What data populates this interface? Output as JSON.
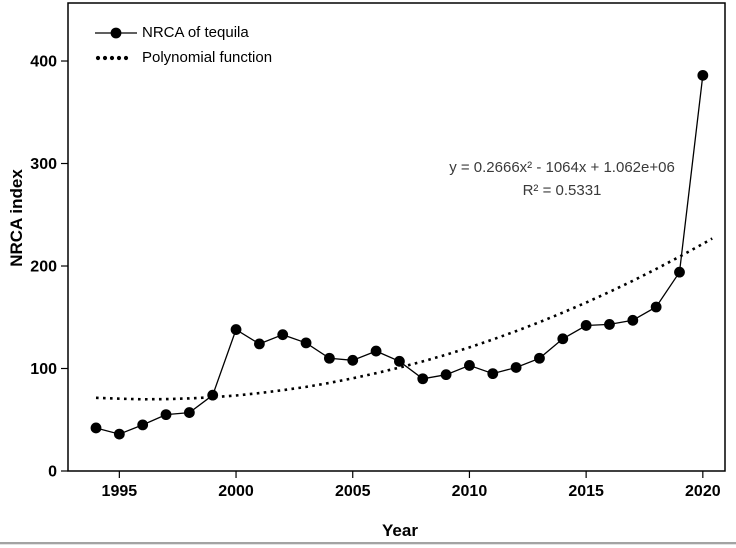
{
  "page": {
    "background": "#ffffff",
    "foreground": "#000000",
    "divider_color": "#a3a3a3",
    "annotation_color": "#3a3a3a"
  },
  "chart_data": {
    "type": "line",
    "title": "",
    "xlabel": "Year",
    "ylabel": "NRCA index",
    "xlim": [
      1992.8,
      2020.95
    ],
    "ylim": [
      0,
      456.6
    ],
    "x_ticks": [
      1995,
      2000,
      2005,
      2010,
      2015,
      2020
    ],
    "y_ticks": [
      0,
      100,
      200,
      300,
      400
    ],
    "grid": false,
    "legend_position": "top-left-inside",
    "annotation": {
      "equation": "y = 0.2666x² - 1064x + 1.062e+06",
      "r_squared": "R² = 0.5331"
    },
    "series": [
      {
        "name": "NRCA of tequila",
        "style": "solid-line-filled-circle-markers",
        "color": "#000000",
        "x": [
          1994,
          1995,
          1996,
          1997,
          1998,
          1999,
          2000,
          2001,
          2002,
          2003,
          2004,
          2005,
          2006,
          2007,
          2008,
          2009,
          2010,
          2011,
          2012,
          2013,
          2014,
          2015,
          2016,
          2017,
          2018,
          2019,
          2020
        ],
        "values": [
          42,
          36,
          45,
          55,
          57,
          74,
          138,
          124,
          133,
          125,
          110,
          108,
          117,
          107,
          90,
          94,
          103,
          95,
          101,
          110,
          129,
          142,
          143,
          147,
          160,
          194,
          386
        ]
      },
      {
        "name": "Polynomial function",
        "style": "dotted-line",
        "color": "#000000",
        "x": [
          1994,
          1995,
          1996,
          1997,
          1998,
          1999,
          2000,
          2001,
          2002,
          2003,
          2004,
          2005,
          2006,
          2007,
          2008,
          2009,
          2010,
          2011,
          2012,
          2013,
          2014,
          2015,
          2016,
          2017,
          2018,
          2019,
          2020,
          2020.4
        ],
        "values": [
          71.4,
          70.5,
          70.0,
          70.1,
          70.8,
          72.0,
          73.7,
          76.0,
          78.8,
          82.1,
          86.0,
          90.4,
          95.4,
          100.9,
          106.9,
          113.5,
          120.6,
          128.3,
          136.5,
          145.2,
          154.5,
          164.3,
          174.7,
          185.6,
          197.1,
          209.1,
          221.6,
          226.8
        ]
      }
    ]
  }
}
